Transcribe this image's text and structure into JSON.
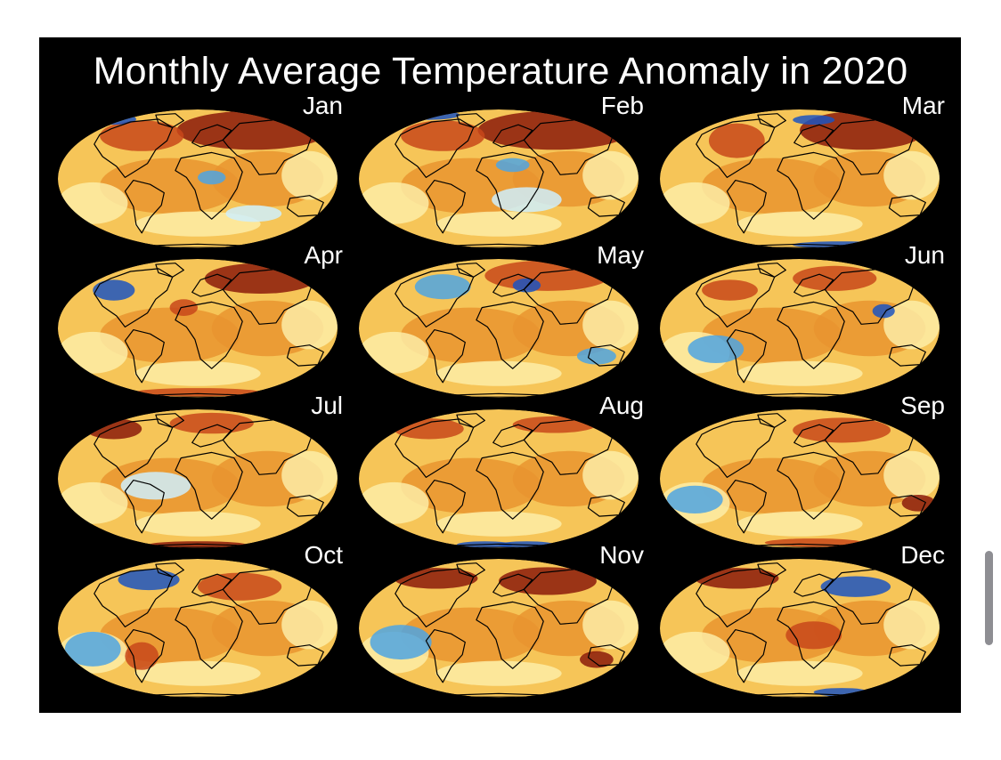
{
  "figure": {
    "title": "Monthly Average Temperature Anomaly in 2020",
    "background": "#000000"
  },
  "colors": {
    "warm_extreme": "#8b1a0a",
    "warm_strong": "#c8481a",
    "warm": "#e9942f",
    "mild": "#f6c558",
    "neutral": "#fdeca6",
    "cool": "#cfeefb",
    "cold": "#4fa4e2",
    "cold_extreme": "#1c54c0",
    "coastline": "#000000"
  },
  "projection": "Mollweide",
  "months": [
    {
      "label": "Jan"
    },
    {
      "label": "Feb"
    },
    {
      "label": "Mar"
    },
    {
      "label": "Apr"
    },
    {
      "label": "May"
    },
    {
      "label": "Jun"
    },
    {
      "label": "Jul"
    },
    {
      "label": "Aug"
    },
    {
      "label": "Sep"
    },
    {
      "label": "Oct"
    },
    {
      "label": "Nov"
    },
    {
      "label": "Dec"
    }
  ],
  "scrollbar": {
    "icon": "scrollbar-thumb"
  }
}
